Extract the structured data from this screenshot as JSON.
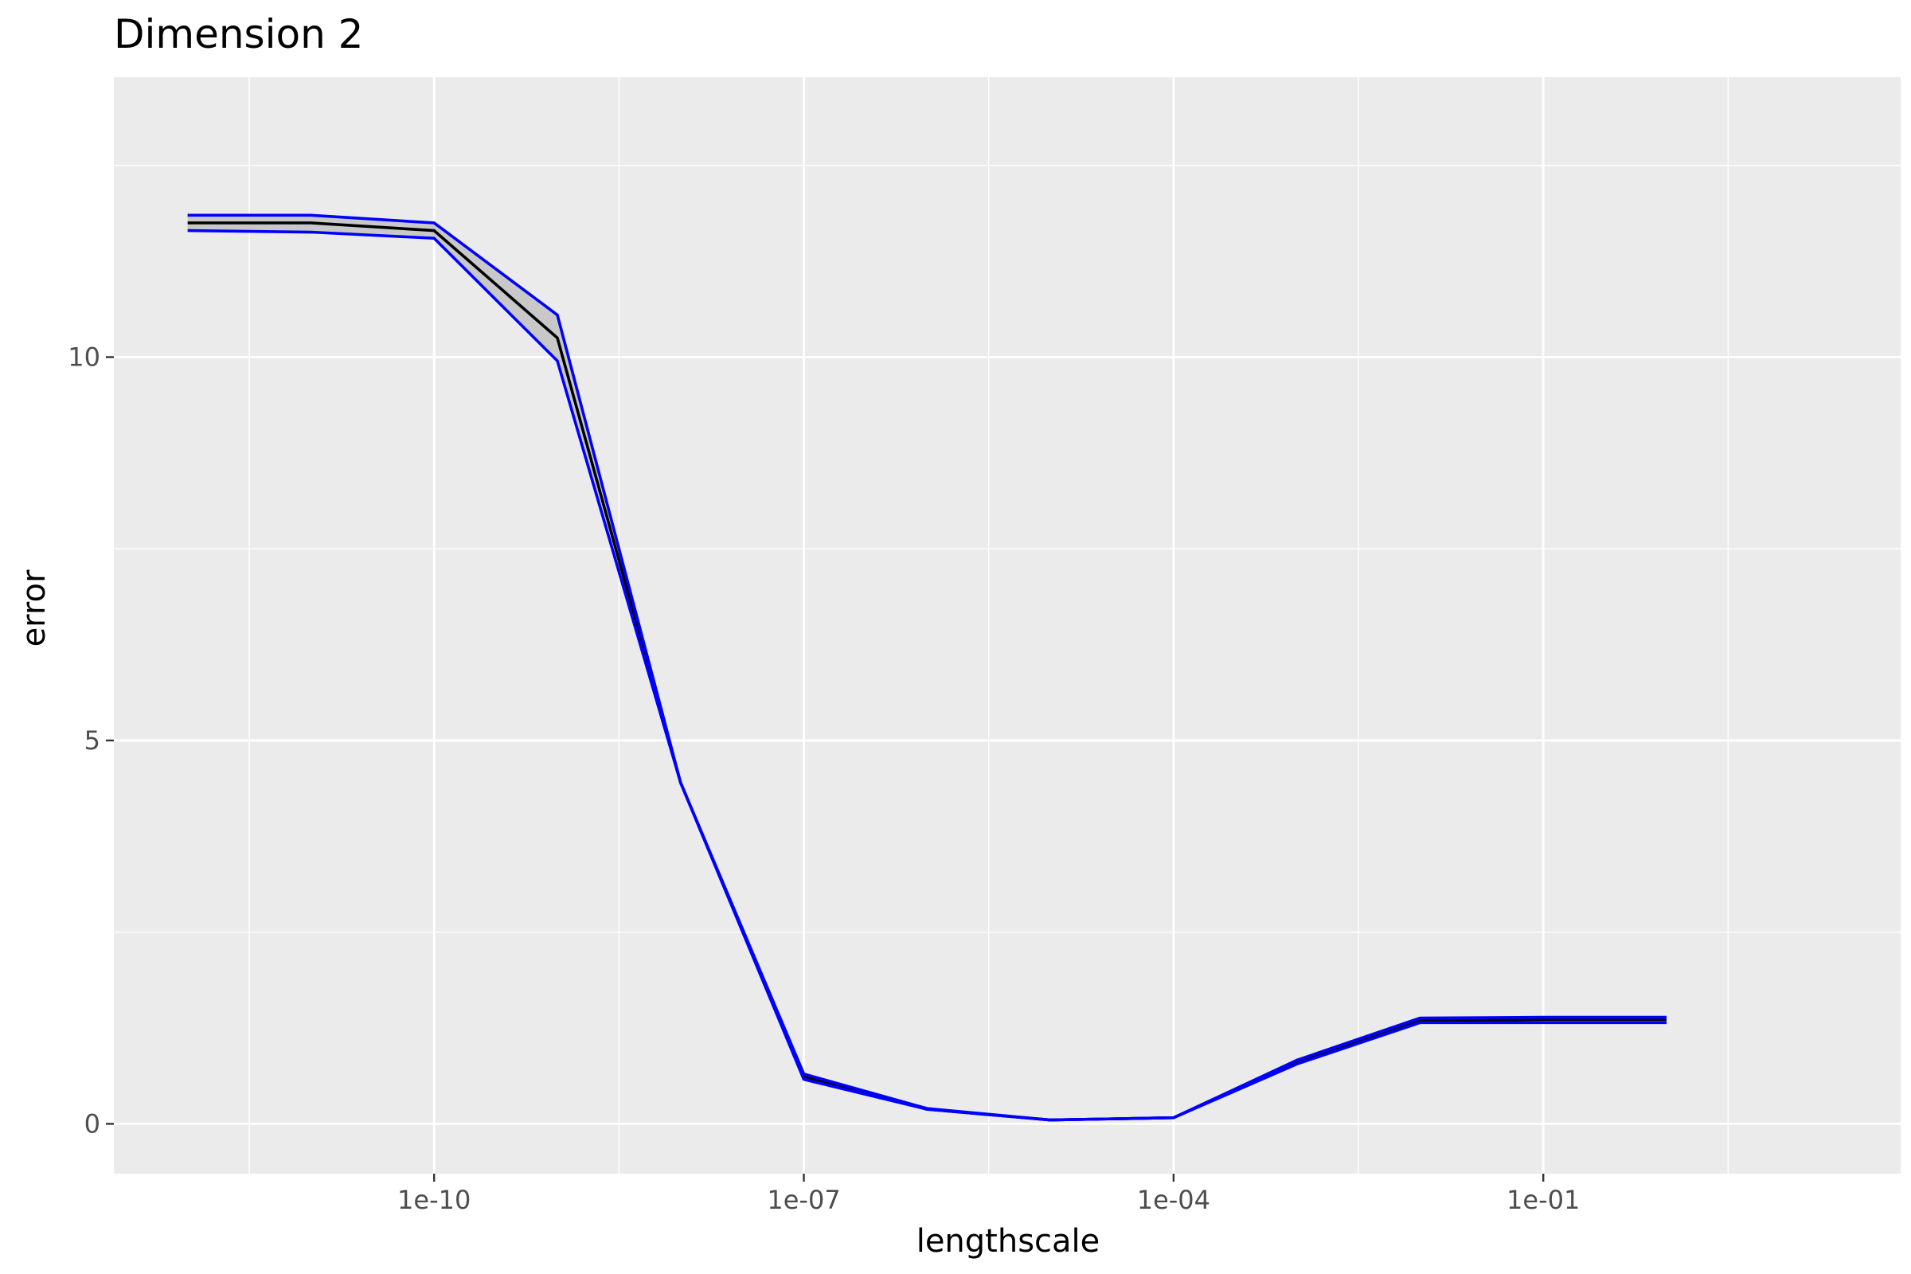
{
  "chart_data": {
    "type": "line",
    "title": "Dimension 2",
    "xlabel": "lengthscale",
    "ylabel": "error",
    "x_scale": "log10",
    "x_ticks": [
      "1e-10",
      "1e-07",
      "1e-04",
      "1e-01"
    ],
    "y_ticks": [
      "0",
      "5",
      "10"
    ],
    "xlim": [
      1e-12,
      20
    ],
    "ylim": [
      -0.65,
      13.65
    ],
    "grid": true,
    "legend": "none",
    "x": [
      1e-12,
      1e-11,
      1e-10,
      1e-09,
      1e-08,
      1e-07,
      1e-06,
      1e-05,
      0.0001,
      0.001,
      0.01,
      0.1,
      1
    ],
    "series": [
      {
        "values": [
          11.75,
          11.75,
          11.65,
          10.25,
          4.45,
          0.62,
          0.19,
          0.05,
          0.08,
          0.8,
          1.35,
          1.36,
          1.36
        ],
        "color": "#000000"
      },
      {
        "values": [
          11.85,
          11.85,
          11.75,
          10.55,
          4.45,
          0.65,
          0.2,
          0.05,
          0.08,
          0.83,
          1.38,
          1.39,
          1.39
        ],
        "color": "#0000ff"
      },
      {
        "values": [
          11.65,
          11.63,
          11.55,
          9.95,
          4.45,
          0.58,
          0.19,
          0.05,
          0.08,
          0.78,
          1.32,
          1.32,
          1.32
        ],
        "color": "#0000ff"
      }
    ],
    "ribbon_color": "#c8c8c8",
    "panel_background": "#ebebeb",
    "grid_color": "#ffffff"
  }
}
